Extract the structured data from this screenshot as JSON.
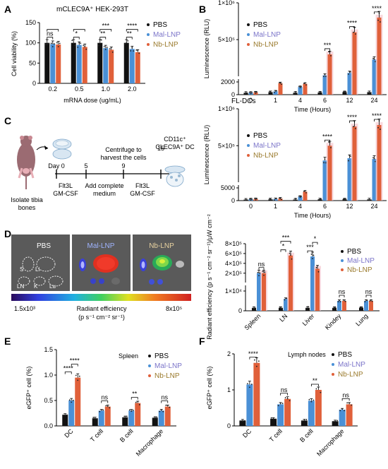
{
  "colors": {
    "pbs": "#111111",
    "mal": "#4a90d6",
    "nb": "#e0603a",
    "mal_label": "#7b74c9",
    "nb_label": "#9a7a2c",
    "pink": "#f3bfc8",
    "lightblue": "#cfe3f5"
  },
  "panel_letters": [
    "A",
    "B",
    "C",
    "D",
    "E",
    "F"
  ],
  "chart_data": [
    {
      "id": "A",
      "type": "bar",
      "title": "mCLEC9A⁺ HEK-293T",
      "ylabel": "Cell viability (%)",
      "xlabel": "mRNA dose (ug/mL)",
      "categories": [
        "0.2",
        "0.5",
        "1.0",
        "2.0"
      ],
      "ylim": [
        0,
        150
      ],
      "yticks": [
        0,
        50,
        100,
        150
      ],
      "series": [
        {
          "name": "PBS",
          "values": [
            100,
            100,
            100,
            100
          ]
        },
        {
          "name": "Mal-LNP",
          "values": [
            97,
            95,
            87,
            85
          ]
        },
        {
          "name": "Nb-LNP",
          "values": [
            96,
            90,
            83,
            77
          ]
        }
      ],
      "sig": [
        {
          "cat": 0,
          "a": 0,
          "b": 1,
          "label": "ns"
        },
        {
          "cat": 0,
          "a": 0,
          "b": 2,
          "label": ""
        },
        {
          "cat": 1,
          "a": 0,
          "b": 1,
          "label": "*"
        },
        {
          "cat": 1,
          "a": 0,
          "b": 2,
          "label": ""
        },
        {
          "cat": 2,
          "a": 0,
          "b": 1,
          "label": "**"
        },
        {
          "cat": 2,
          "a": 0,
          "b": 2,
          "label": "***"
        },
        {
          "cat": 3,
          "a": 0,
          "b": 1,
          "label": "**"
        },
        {
          "cat": 3,
          "a": 0,
          "b": 2,
          "label": "****"
        }
      ]
    },
    {
      "id": "B1",
      "type": "bar",
      "title": "mCLEC9A⁺ HEK-293T",
      "ylabel": "Luminescence (RLU)",
      "xlabel": "Time (Hours)",
      "categories": [
        "0",
        "1",
        "4",
        "6",
        "12",
        "24"
      ],
      "ytick_labels": [
        "1×10⁶",
        "5×10⁵",
        "2000",
        "0"
      ],
      "series": [
        {
          "name": "PBS",
          "values": [
            300,
            400,
            300,
            350,
            400,
            400
          ]
        },
        {
          "name": "Mal-LNP",
          "values": [
            300,
            500,
            1200,
            15000,
            48000,
            230000
          ]
        },
        {
          "name": "Nb-LNP",
          "values": [
            350,
            1800,
            1700,
            300000,
            600000,
            800000
          ]
        }
      ],
      "sig": [
        {
          "cat": 3,
          "label": "***"
        },
        {
          "cat": 4,
          "label": "****"
        },
        {
          "cat": 5,
          "label": "****"
        }
      ]
    },
    {
      "id": "B2",
      "type": "bar",
      "title": "FL-DCs",
      "ylabel": "Luminescence (RLU)",
      "xlabel": "Time (Hours)",
      "categories": [
        "0",
        "1",
        "4",
        "6",
        "12",
        "24"
      ],
      "ytick_labels": [
        "1×10⁶",
        "5×10⁵",
        "5000",
        "0"
      ],
      "series": [
        {
          "name": "PBS",
          "values": [
            400,
            500,
            400,
            500,
            500,
            500
          ]
        },
        {
          "name": "Mal-LNP",
          "values": [
            500,
            600,
            1500,
            300000,
            330000,
            320000
          ]
        },
        {
          "name": "Nb-LNP",
          "values": [
            600,
            800,
            3500,
            500000,
            760000,
            780000
          ]
        }
      ],
      "sig": [
        {
          "cat": 3,
          "label": "****"
        },
        {
          "cat": 4,
          "label": "****"
        },
        {
          "cat": 5,
          "label": "****"
        }
      ]
    },
    {
      "id": "D",
      "type": "bar",
      "ylabel": "Radiant efficiency (p s⁻¹ cm⁻² sr⁻¹)/μW cm⁻²",
      "categories": [
        "Spleen",
        "LN",
        "Liver",
        "Kindey",
        "Lung"
      ],
      "ytick_labels": [
        "8×10⁵",
        "6×10⁵",
        "4×10⁵",
        "2×10⁵",
        "1×10⁴",
        "0"
      ],
      "series": [
        {
          "name": "PBS",
          "values": [
            1500,
            1500,
            1500,
            1500,
            1500
          ]
        },
        {
          "name": "Mal-LNP",
          "values": [
            200000,
            6000,
            540000,
            5000,
            5000
          ]
        },
        {
          "name": "Nb-LNP",
          "values": [
            200000,
            560000,
            290000,
            5000,
            5000
          ]
        }
      ],
      "sig": [
        {
          "cat": 0,
          "a": 1,
          "b": 2,
          "label": "ns"
        },
        {
          "cat": 1,
          "a": 0,
          "b": 1,
          "label": "*"
        },
        {
          "cat": 1,
          "a": 0,
          "b": 2,
          "label": "***"
        },
        {
          "cat": 2,
          "a": 0,
          "b": 1,
          "label": "***"
        },
        {
          "cat": 2,
          "a": 1,
          "b": 2,
          "label": "*"
        },
        {
          "cat": 3,
          "a": 1,
          "b": 2,
          "label": "ns"
        },
        {
          "cat": 4,
          "a": 1,
          "b": 2,
          "label": "ns"
        }
      ]
    },
    {
      "id": "E",
      "type": "bar",
      "title": "Spleen",
      "ylabel": "eGFP⁺ cell (%)",
      "categories": [
        "DC",
        "T cell",
        "B cell",
        "Macrophage"
      ],
      "ylim": [
        0,
        1.5
      ],
      "yticks": [
        0.0,
        0.5,
        1.0,
        1.5
      ],
      "series": [
        {
          "name": "PBS",
          "values": [
            0.22,
            0.15,
            0.17,
            0.16
          ]
        },
        {
          "name": "Mal-LNP",
          "values": [
            0.5,
            0.3,
            0.3,
            0.3
          ]
        },
        {
          "name": "Nb-LNP",
          "values": [
            0.95,
            0.38,
            0.45,
            0.38
          ]
        }
      ],
      "sig": [
        {
          "cat": 0,
          "a": 0,
          "b": 1,
          "label": "****"
        },
        {
          "cat": 0,
          "a": 1,
          "b": 2,
          "label": "****"
        },
        {
          "cat": 1,
          "a": 1,
          "b": 2,
          "label": "ns"
        },
        {
          "cat": 2,
          "a": 1,
          "b": 2,
          "label": "**"
        },
        {
          "cat": 3,
          "a": 1,
          "b": 2,
          "label": "ns"
        }
      ]
    },
    {
      "id": "F",
      "type": "bar",
      "title": "Lymph nodes",
      "ylabel": "eGFP⁺ cell (%)",
      "categories": [
        "DC",
        "T cell",
        "B cell",
        "Macrophage"
      ],
      "ylim": [
        0,
        2
      ],
      "yticks": [
        0,
        1,
        2
      ],
      "series": [
        {
          "name": "PBS",
          "values": [
            0.15,
            0.2,
            0.15,
            0.13
          ]
        },
        {
          "name": "Mal-LNP",
          "values": [
            1.15,
            0.6,
            0.7,
            0.45
          ]
        },
        {
          "name": "Nb-LNP",
          "values": [
            1.75,
            0.75,
            1.0,
            0.6
          ]
        }
      ],
      "sig": [
        {
          "cat": 0,
          "a": 1,
          "b": 2,
          "label": "****"
        },
        {
          "cat": 1,
          "a": 1,
          "b": 2,
          "label": "ns"
        },
        {
          "cat": 2,
          "a": 1,
          "b": 2,
          "label": "**"
        },
        {
          "cat": 3,
          "a": 1,
          "b": 2,
          "label": "ns"
        }
      ]
    }
  ],
  "legend": [
    "PBS",
    "Mal-LNP",
    "Nb-LNP"
  ],
  "timeline": {
    "days": [
      "Day 0",
      "5",
      "9",
      "15"
    ],
    "top_labels": [
      "Centrifuge to",
      "harvest the cells"
    ],
    "dc_label": [
      "CD11c⁺",
      "CLEC9A⁺ DC"
    ],
    "bottom": [
      [
        "Isolate tibia",
        "bones"
      ],
      [
        "Flt3L",
        "GM-CSF"
      ],
      [
        "Add complete",
        "medium"
      ],
      [
        "Flt3L",
        "GM-CSF"
      ]
    ]
  },
  "imaging": {
    "groups": [
      "PBS",
      "Mal-LNP",
      "Nb-LNP"
    ],
    "organ_letters": [
      "S",
      "Li",
      "LN",
      "K",
      "Lu"
    ],
    "scale_min": "1.5x10³",
    "scale_max": "8x10⁵",
    "scale_title": "Radiant efficiency",
    "scale_unit": "(p s⁻¹ cm⁻² sr⁻¹)"
  }
}
